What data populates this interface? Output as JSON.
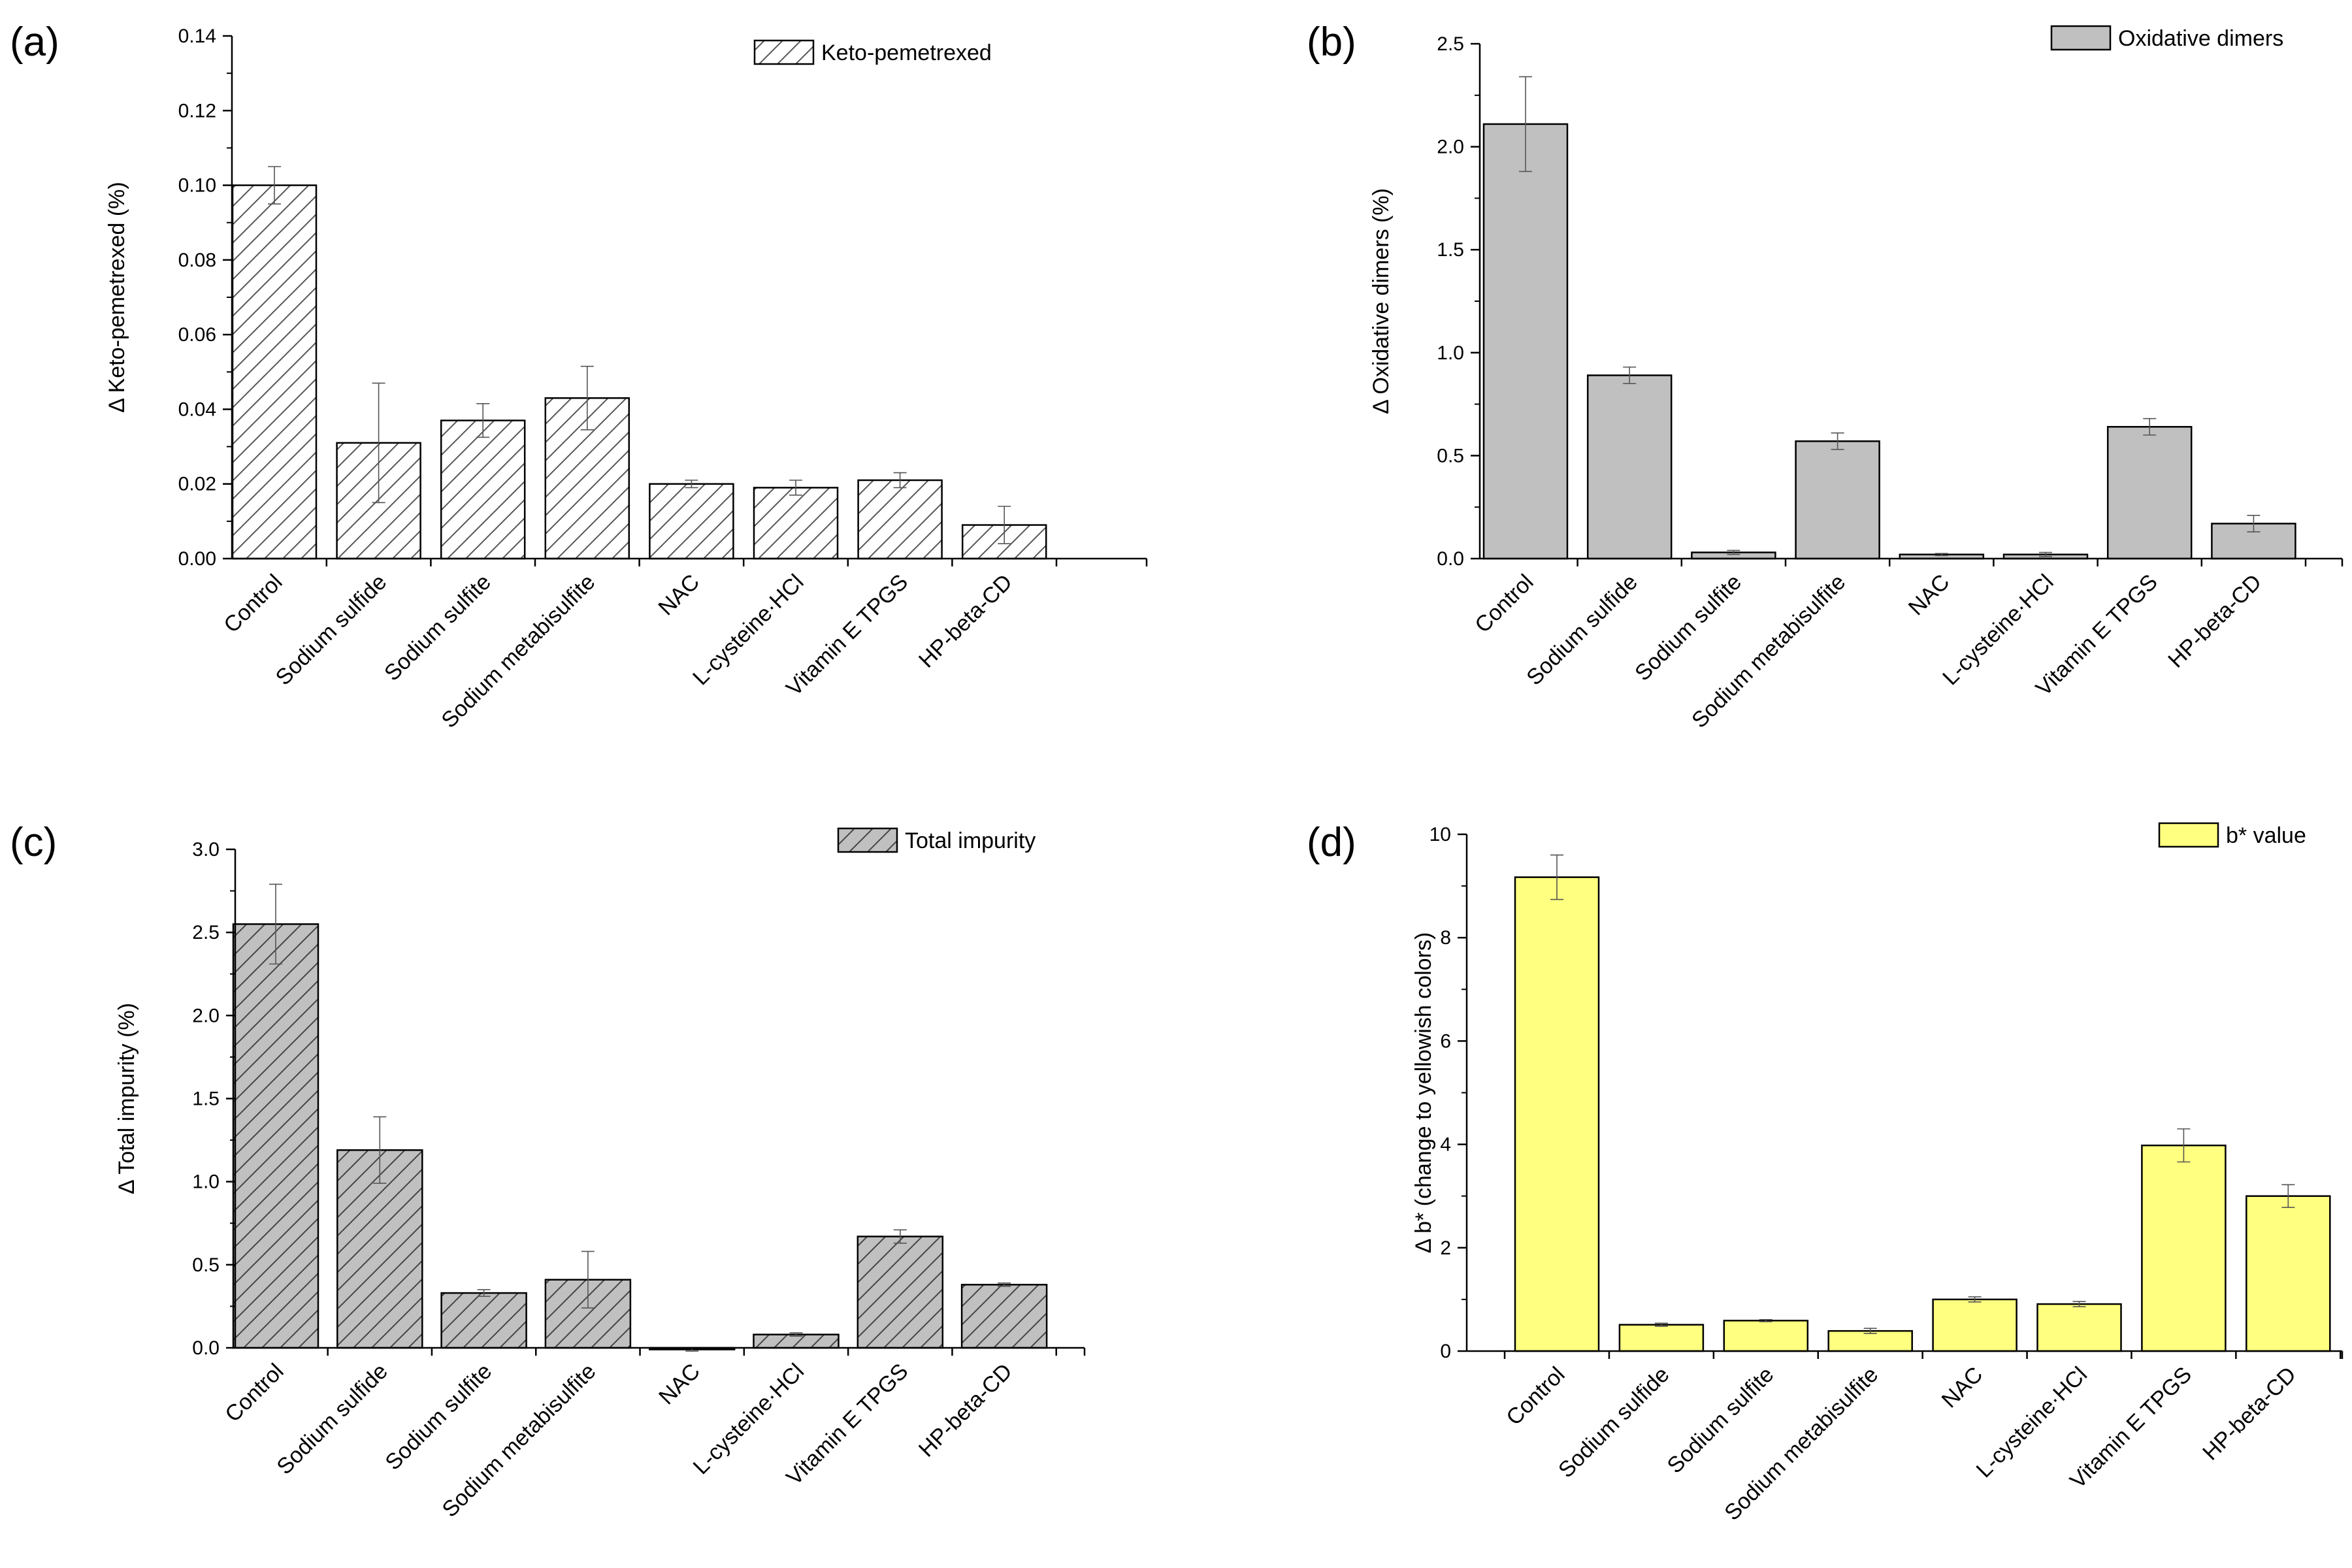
{
  "figure": {
    "categories": [
      "Control",
      "Sodium sulfide",
      "Sodium sulfite",
      "Sodium metabisulfite",
      "NAC",
      "L-cysteine·HCl",
      "Vitamin E TPGS",
      "HP-beta-CD"
    ]
  },
  "chart_data": [
    {
      "panel": "(a)",
      "type": "bar",
      "ylabel": "Δ Keto-pemetrexed (%)",
      "xlabel": "",
      "legend": "Keto-pemetrexed",
      "legend_position": "top-right",
      "ylim": [
        0,
        0.14
      ],
      "yticks": [
        0.0,
        0.02,
        0.04,
        0.06,
        0.08,
        0.1,
        0.12,
        0.14
      ],
      "ytick_labels": [
        "0.00",
        "0.02",
        "0.04",
        "0.06",
        "0.08",
        "0.10",
        "0.12",
        "0.14"
      ],
      "values": [
        0.1,
        0.031,
        0.037,
        0.043,
        0.02,
        0.019,
        0.021,
        0.009
      ],
      "errors": [
        0.005,
        0.016,
        0.0045,
        0.0085,
        0.001,
        0.002,
        0.002,
        0.005
      ],
      "fill": "#ffffff",
      "hatch": true
    },
    {
      "panel": "(b)",
      "type": "bar",
      "ylabel": "Δ Oxidative dimers (%)",
      "xlabel": "",
      "legend": "Oxidative dimers",
      "legend_position": "top-right",
      "ylim": [
        0,
        2.5
      ],
      "yticks": [
        0.0,
        0.5,
        1.0,
        1.5,
        2.0,
        2.5
      ],
      "ytick_labels": [
        "0.0",
        "0.5",
        "1.0",
        "1.5",
        "2.0",
        "2.5"
      ],
      "values": [
        2.11,
        0.89,
        0.03,
        0.57,
        0.02,
        0.02,
        0.64,
        0.17
      ],
      "errors": [
        0.23,
        0.04,
        0.01,
        0.04,
        0.005,
        0.01,
        0.04,
        0.04
      ],
      "fill": "#c0c0c0",
      "hatch": false
    },
    {
      "panel": "(c)",
      "type": "bar",
      "ylabel": "Δ Total impurity (%)",
      "xlabel": "",
      "legend": "Total impurity",
      "legend_position": "top-right",
      "ylim": [
        0,
        3.0
      ],
      "yticks": [
        0.0,
        0.5,
        1.0,
        1.5,
        2.0,
        2.5,
        3.0
      ],
      "ytick_labels": [
        "0.0",
        "0.5",
        "1.0",
        "1.5",
        "2.0",
        "2.5",
        "3.0"
      ],
      "values": [
        2.55,
        1.19,
        0.33,
        0.41,
        -0.01,
        0.08,
        0.67,
        0.38
      ],
      "errors": [
        0.24,
        0.2,
        0.02,
        0.17,
        0.01,
        0.01,
        0.04,
        0.01
      ],
      "fill": "#c0c0c0",
      "hatch": true
    },
    {
      "panel": "(d)",
      "type": "bar",
      "ylabel": "Δ b* (change to yellowish colors)",
      "xlabel": "",
      "legend": "b* value",
      "legend_position": "top-right",
      "ylim": [
        0,
        10
      ],
      "yticks": [
        0,
        2,
        4,
        6,
        8,
        10
      ],
      "ytick_labels": [
        "0",
        "2",
        "4",
        "6",
        "8",
        "10"
      ],
      "values": [
        9.17,
        0.51,
        0.59,
        0.39,
        1.0,
        0.91,
        3.98,
        3.0
      ],
      "errors": [
        0.43,
        0.03,
        0.02,
        0.05,
        0.05,
        0.05,
        0.32,
        0.22
      ],
      "fill": "#ffff80",
      "hatch": false
    }
  ]
}
